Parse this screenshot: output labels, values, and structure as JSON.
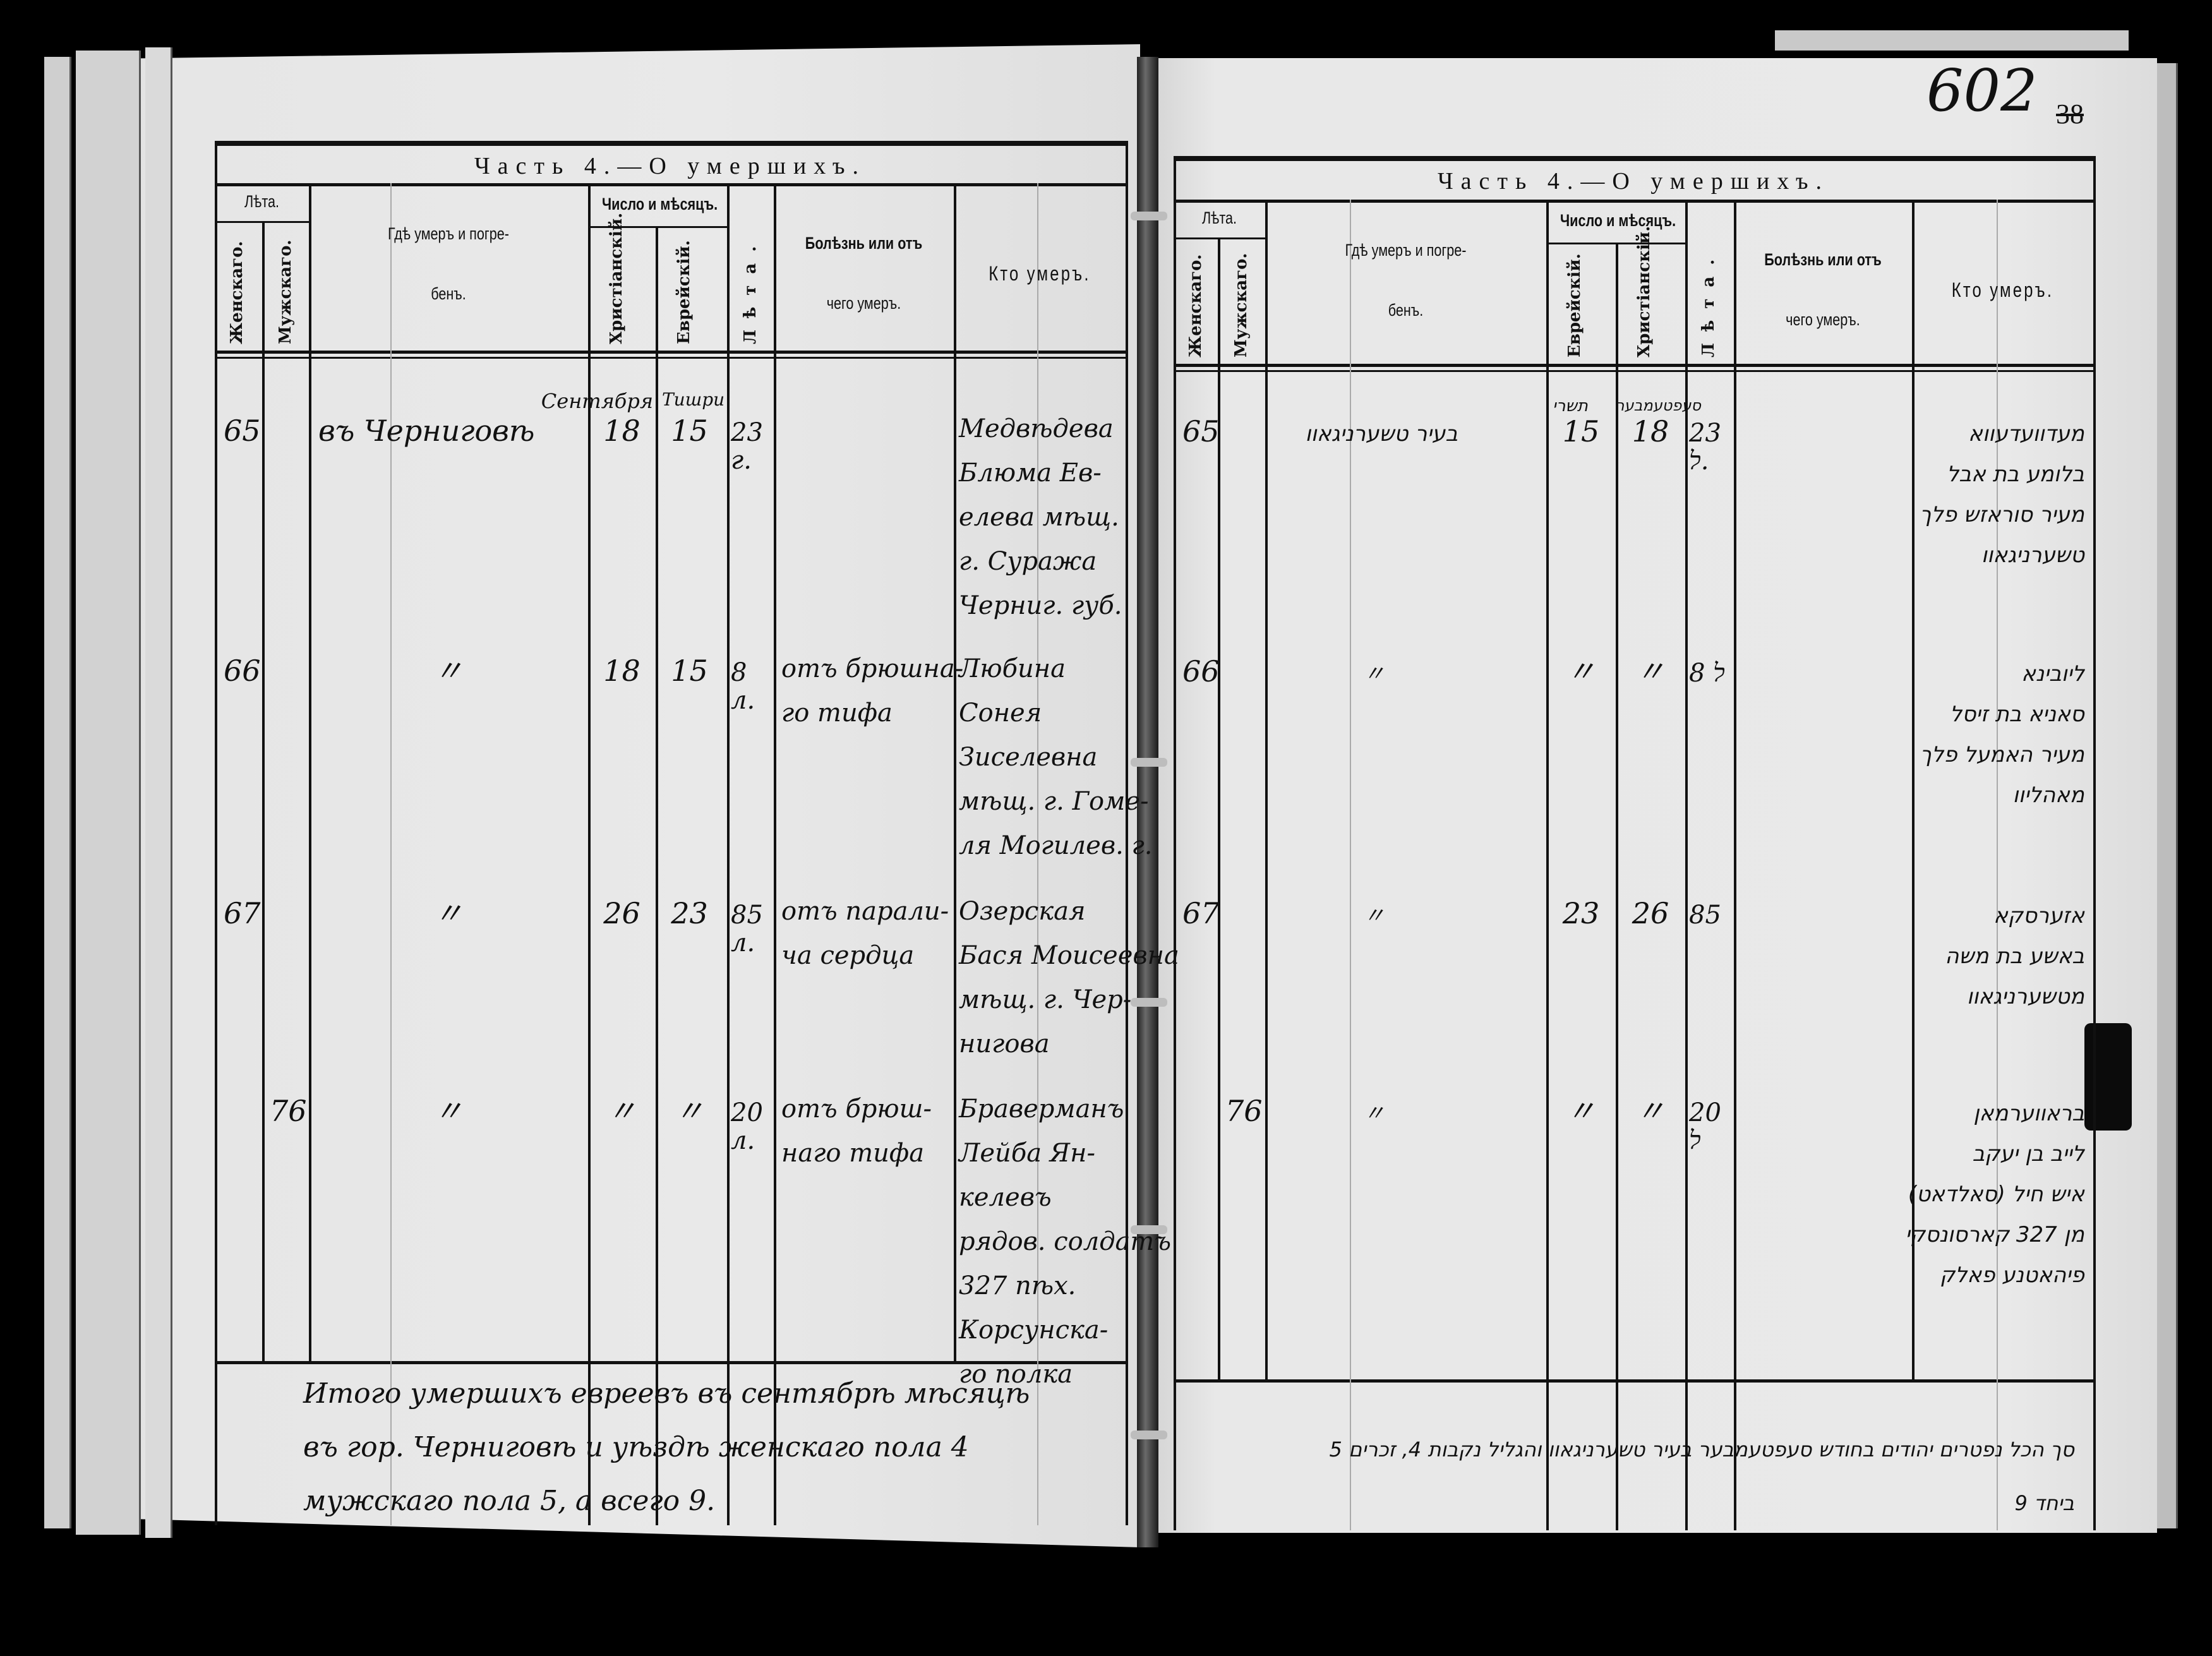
{
  "page_number": "602",
  "old_page_number": "38",
  "headers": {
    "title": "Часть 4.—О умершихъ.",
    "leta": "Лѣта.",
    "female": "Женскаго.",
    "male": "Мужскаго.",
    "place_1": "Гдѣ умеръ и погре-",
    "place_2": "бенъ.",
    "date": "Число и мѣсяцъ.",
    "christian": "Христіанскій.",
    "jewish": "Еврейскій.",
    "age": "Лѣта.",
    "cause_1": "Болѣзнь или отъ",
    "cause_2": "чего умеръ.",
    "who": "Кто умеръ."
  },
  "left": {
    "month_christian": "Сентября",
    "month_jewish": "Тишри",
    "rows": [
      {
        "female": "65",
        "male": "",
        "place": "въ Черниговѣ",
        "christian": "18",
        "jewish": "15",
        "age": "23 г.",
        "cause": [],
        "name": [
          "Медвѣдева",
          "Блюма Ев-",
          "елева мѣщ.",
          "г. Суража",
          "Черниг. губ."
        ]
      },
      {
        "female": "66",
        "male": "",
        "place": "〃",
        "christian": "18",
        "jewish": "15",
        "age": "8 л.",
        "cause": [
          "отъ брюшна-",
          "го тифа"
        ],
        "name": [
          "Любина",
          "Сонея",
          "Зиселевна",
          "мѣщ. г. Гоме-",
          "ля Могилев. г."
        ]
      },
      {
        "female": "67",
        "male": "",
        "place": "〃",
        "christian": "26",
        "jewish": "23",
        "age": "85 л.",
        "cause": [
          "отъ парали-",
          "ча сердца"
        ],
        "name": [
          "Озерская",
          "Бася Моисеевна",
          "мѣщ. г. Чер-",
          "нигова"
        ]
      },
      {
        "female": "",
        "male": "76",
        "place": "〃",
        "christian": "〃",
        "jewish": "〃",
        "age": "20 л.",
        "cause": [
          "отъ брюш-",
          "наго тифа"
        ],
        "name": [
          "Браверманъ",
          "Лейба Ян-",
          "келевъ",
          "рядов. солдатъ",
          "327 пѣх.",
          "Корсунска-",
          "го полка"
        ]
      }
    ],
    "summary": [
      "Итого умершихъ евреевъ въ сентябрѣ мѣсяцѣ",
      "въ гор. Черниговѣ и уѣздѣ женскаго пола 4",
      "мужскаго пола 5, а всего 9."
    ]
  },
  "right": {
    "month_jewish": "תשרי",
    "month_christian": "סעפטעמבער",
    "rows": [
      {
        "female": "65",
        "male": "",
        "place": "בעיר טשערניגאוו",
        "jewish": "15",
        "christian": "18",
        "age": "23 ל.",
        "name": [
          "מעדוועדעווא",
          "בלומע בת אבל",
          "מעיר סוראזש פלך",
          "טשערניגאוו"
        ]
      },
      {
        "female": "66",
        "male": "",
        "place": "〃",
        "jewish": "〃",
        "christian": "〃",
        "age": "8 ל",
        "name": [
          "ליובינא",
          "סאניא בת זיסל",
          "מעיר האמעל פלך",
          "מאהליוו"
        ]
      },
      {
        "female": "67",
        "male": "",
        "place": "〃",
        "jewish": "23",
        "christian": "26",
        "age": "85",
        "name": [
          "אזערסקא",
          "באשע בת משה",
          "מטשערניגאוו"
        ]
      },
      {
        "female": "",
        "male": "76",
        "place": "〃",
        "jewish": "〃",
        "christian": "〃",
        "age": "20 ל",
        "name": [
          "בראווערמאן",
          "לייב בן יעקב",
          "איש חיל (סאלדאט)",
          "מן 327 קארסונסקי",
          "פיהאטנע פאלק"
        ]
      }
    ],
    "summary": [
      "סך הכל נפטרים יהודים בחודש סעפטעמבער בעיר טשערניגאוו והגליל נקבות 4, זכרים 5",
      "ביחד 9"
    ]
  }
}
